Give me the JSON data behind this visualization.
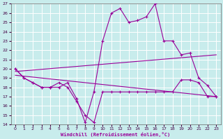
{
  "title": "",
  "xlabel": "Windchill (Refroidissement éolien,°C)",
  "ylabel": "",
  "bg_color": "#c8ecec",
  "grid_color": "#ffffff",
  "line_color": "#990099",
  "xlim": [
    -0.5,
    23.5
  ],
  "ylim": [
    14,
    27
  ],
  "xticks": [
    0,
    1,
    2,
    3,
    4,
    5,
    6,
    7,
    8,
    9,
    10,
    11,
    12,
    13,
    14,
    15,
    16,
    17,
    18,
    19,
    20,
    21,
    22,
    23
  ],
  "yticks": [
    14,
    15,
    16,
    17,
    18,
    19,
    20,
    21,
    22,
    23,
    24,
    25,
    26,
    27
  ],
  "line1_x": [
    0,
    1,
    2,
    3,
    4,
    5,
    6,
    7,
    8,
    9,
    10,
    11,
    12,
    13,
    14,
    15,
    16,
    17,
    18,
    19,
    20,
    21,
    22,
    23
  ],
  "line1_y": [
    20,
    19,
    18.5,
    18,
    18,
    18.5,
    18,
    16.5,
    15,
    14.2,
    17.5,
    17.5,
    17.5,
    17.5,
    17.5,
    17.5,
    17.5,
    17.5,
    17.5,
    18.8,
    18.8,
    18.5,
    17,
    17
  ],
  "line2_x": [
    0,
    1,
    2,
    3,
    4,
    5,
    6,
    7,
    8,
    9,
    10,
    11,
    12,
    13,
    14,
    15,
    16,
    17,
    18,
    19,
    20,
    21,
    22,
    23
  ],
  "line2_y": [
    20,
    19,
    18.5,
    18,
    18,
    18,
    18.5,
    16.8,
    14.2,
    17.5,
    23,
    26,
    26.5,
    25,
    25.2,
    25.6,
    27,
    23,
    23,
    21.5,
    21.7,
    19,
    18.2,
    17
  ],
  "line3_x": [
    0,
    23
  ],
  "line3_y": [
    19.7,
    21.5
  ],
  "line4_x": [
    0,
    23
  ],
  "line4_y": [
    19.3,
    17.0
  ]
}
